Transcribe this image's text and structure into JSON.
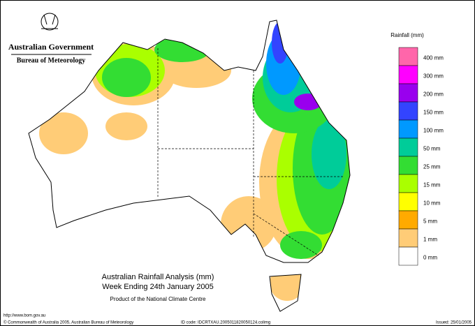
{
  "header": {
    "agency": "Australian Government",
    "bureau": "Bureau of Meteorology"
  },
  "legend": {
    "title": "Rainfall (mm)",
    "items": [
      {
        "label": "400 mm",
        "color": "#ff66aa"
      },
      {
        "label": "300 mm",
        "color": "#ff00ff"
      },
      {
        "label": "200 mm",
        "color": "#9900ee"
      },
      {
        "label": "150 mm",
        "color": "#3344ff"
      },
      {
        "label": "100 mm",
        "color": "#0099ff"
      },
      {
        "label": "50 mm",
        "color": "#00cc99"
      },
      {
        "label": "25 mm",
        "color": "#33dd33"
      },
      {
        "label": "15 mm",
        "color": "#aaff00"
      },
      {
        "label": "10 mm",
        "color": "#ffff00"
      },
      {
        "label": "5 mm",
        "color": "#ffaa00"
      },
      {
        "label": "1 mm",
        "color": "#ffcc77"
      },
      {
        "label": "0 mm",
        "color": "#ffffff"
      }
    ]
  },
  "caption": {
    "title": "Australian Rainfall Analysis (mm)",
    "period": "Week Ending 24th January 2005",
    "product": "Product of the National Climate Centre"
  },
  "footer": {
    "url": "http://www.bom.gov.au",
    "copyright": "© Commonwealth of Australia 2005, Australian Bureau of Meteorology",
    "id_code": "ID code: IDCRTXAU.2005011820050124.colimg",
    "issued": "Issued: 25/01/2005"
  }
}
